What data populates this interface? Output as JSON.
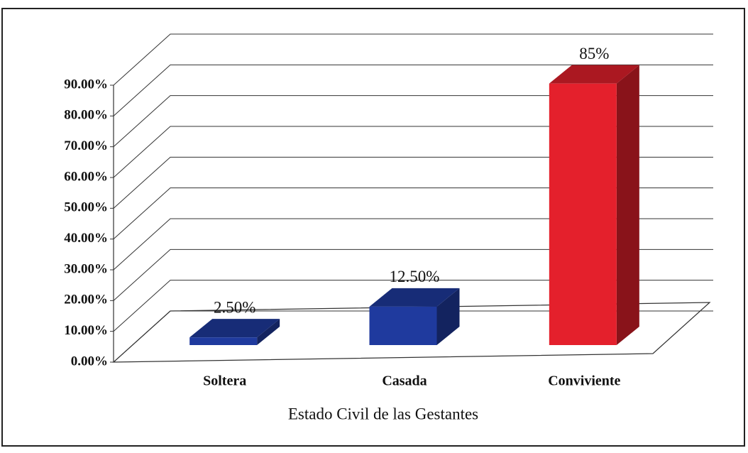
{
  "chart_data": {
    "type": "bar3d",
    "x_label": "Estado Civil de las Gestantes",
    "categories": [
      "Soltera",
      "Casada",
      "Conviviente"
    ],
    "values": [
      2.5,
      12.5,
      85
    ],
    "value_labels": [
      "2.50%",
      "12.50%",
      "85%"
    ],
    "colors": [
      "#1f3a9e",
      "#1f3a9e",
      "#e4202c"
    ],
    "ylim": [
      0,
      90
    ],
    "yticks": [
      {
        "value": 0,
        "label": "0.00%"
      },
      {
        "value": 10,
        "label": "10.00%"
      },
      {
        "value": 20,
        "label": "20.00%"
      },
      {
        "value": 30,
        "label": "30.00%"
      },
      {
        "value": 40,
        "label": "40.00%"
      },
      {
        "value": 50,
        "label": "50.00%"
      },
      {
        "value": 60,
        "label": "60.00%"
      },
      {
        "value": 70,
        "label": "70.00%"
      },
      {
        "value": 80,
        "label": "80.00%"
      },
      {
        "value": 90,
        "label": "90.00%"
      }
    ],
    "grid": true
  }
}
